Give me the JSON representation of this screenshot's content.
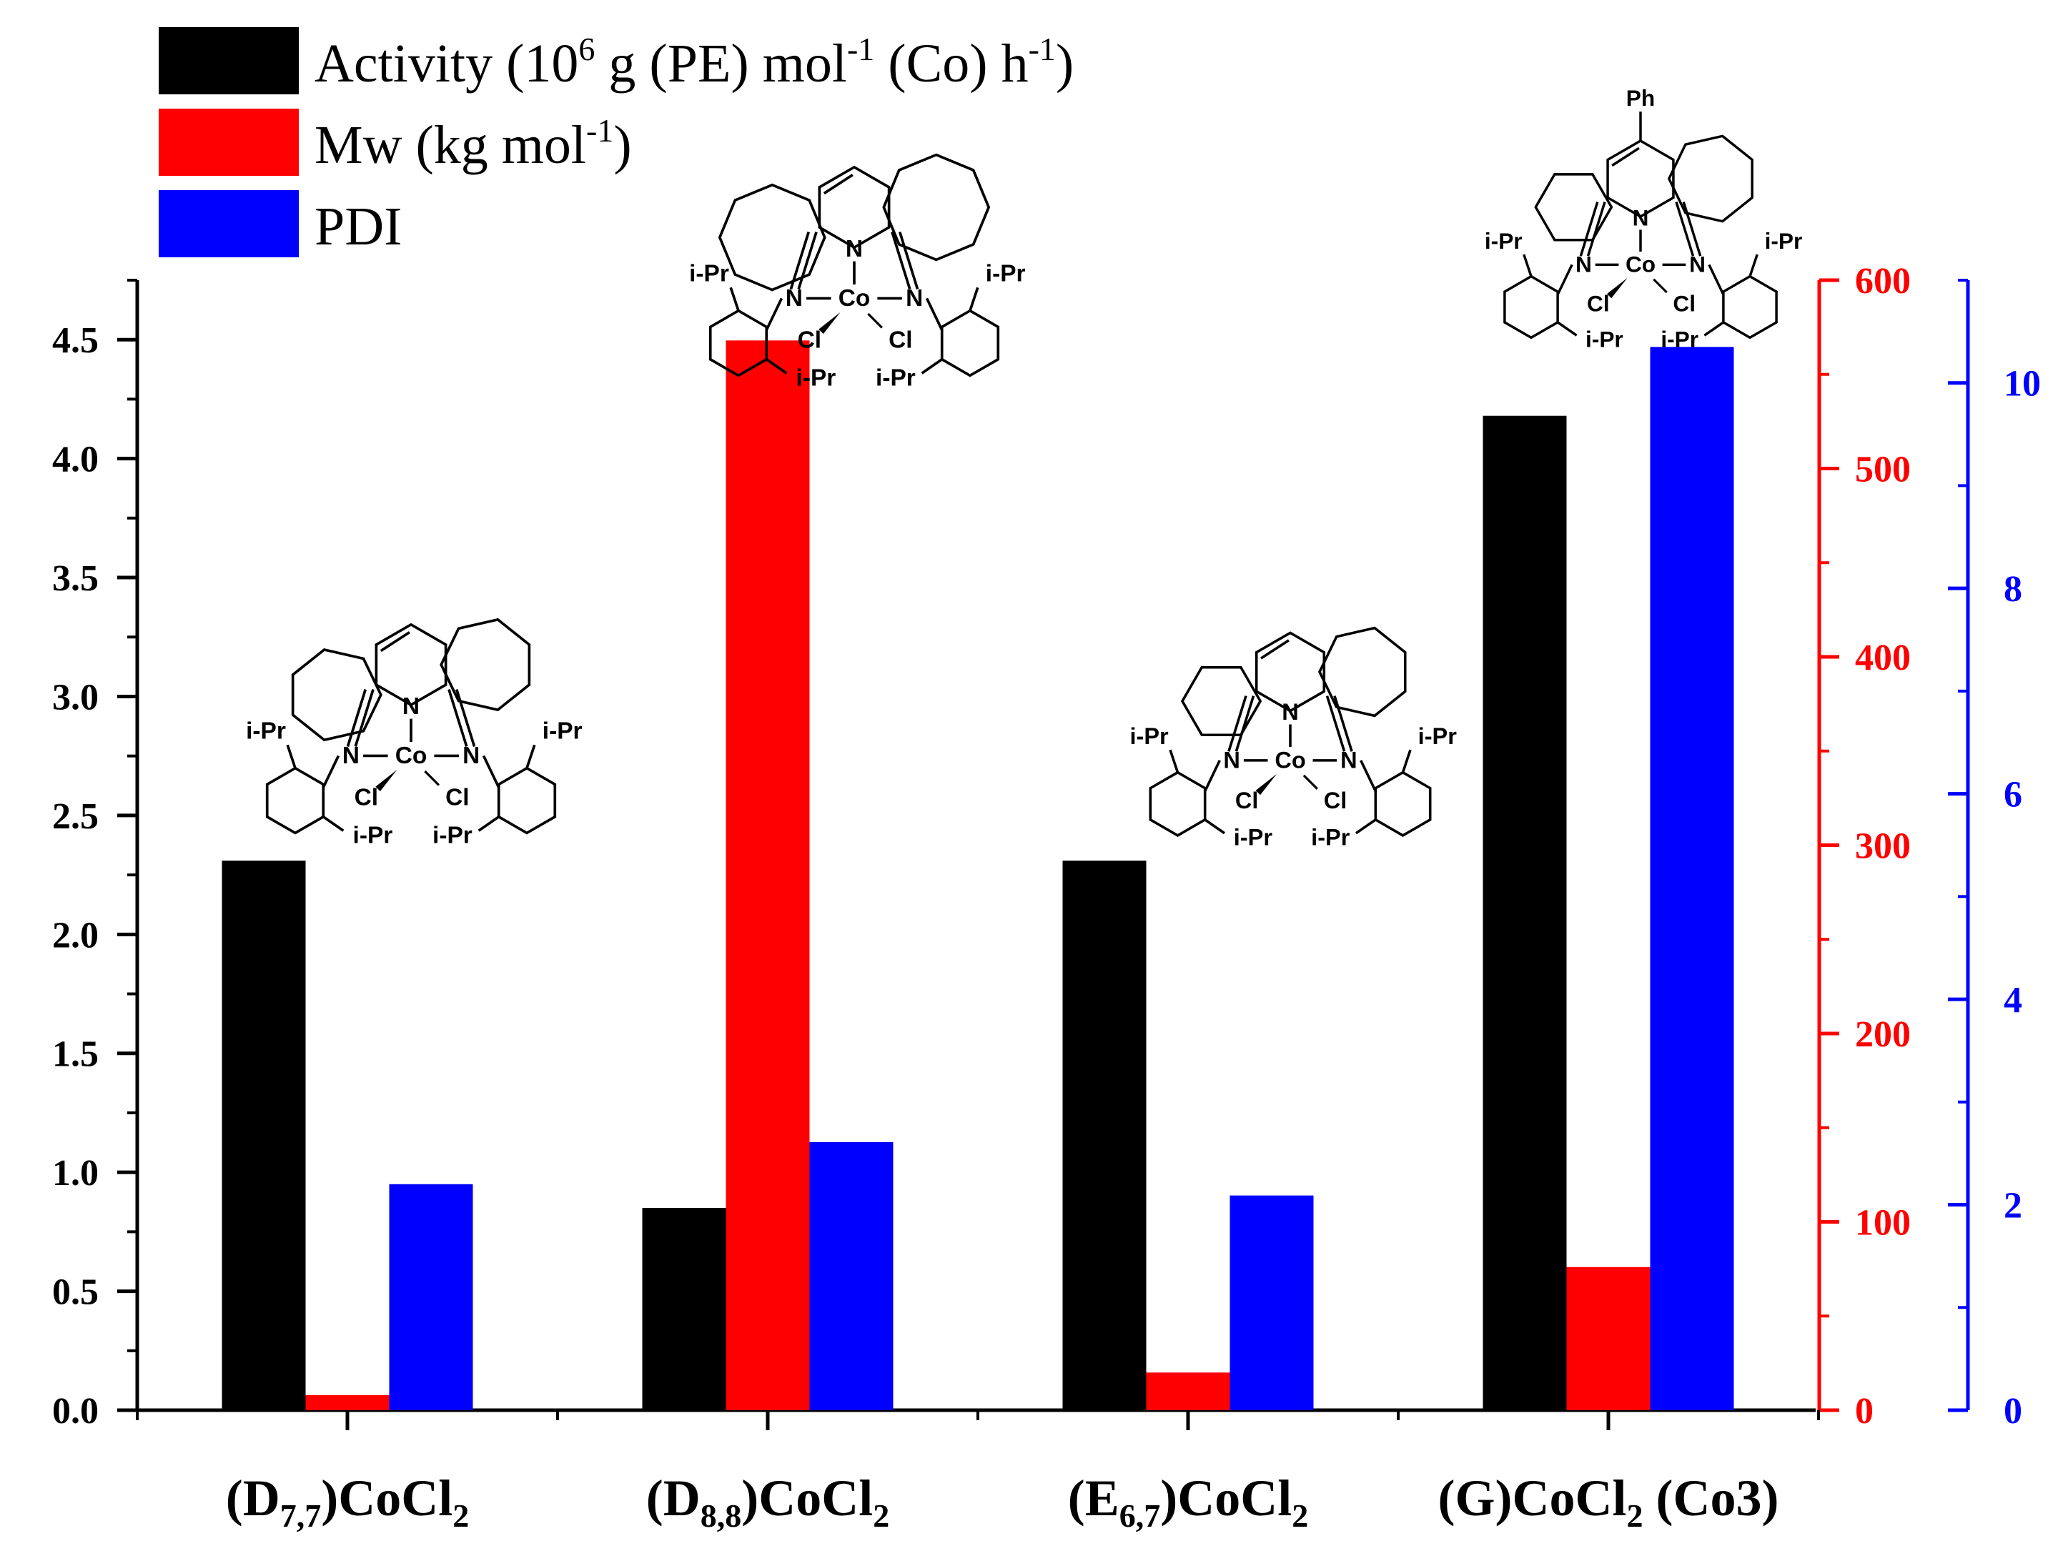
{
  "chart_data": {
    "type": "bar",
    "categories": [
      {
        "main": "(D",
        "sub": "7,7",
        "rest": ")CoCl",
        "sub2": "2",
        "tail": ""
      },
      {
        "main": "(D",
        "sub": "8,8",
        "rest": ")CoCl",
        "sub2": "2",
        "tail": ""
      },
      {
        "main": "(E",
        "sub": "6,7",
        "rest": ")CoCl",
        "sub2": "2",
        "tail": ""
      },
      {
        "main": "(G)CoCl",
        "sub": "2",
        "rest": " (Co3)",
        "sub2": "",
        "tail": ""
      }
    ],
    "series": [
      {
        "name": "Activity",
        "axis": "left",
        "color": "#000000",
        "values": [
          2.31,
          0.85,
          2.31,
          4.18
        ]
      },
      {
        "name": "Mw",
        "axis": "right1",
        "color": "#ff0000",
        "values": [
          8,
          568,
          20,
          76
        ]
      },
      {
        "name": "PDI",
        "axis": "right2",
        "color": "#0000ff",
        "values": [
          2.2,
          2.61,
          2.09,
          10.35
        ]
      }
    ],
    "legend": [
      {
        "color": "#000000",
        "parts": [
          {
            "t": "Activity (10",
            "s": ""
          },
          {
            "t": "6",
            "s": "sup"
          },
          {
            "t": " g (PE) mol",
            "s": ""
          },
          {
            "t": "-1",
            "s": "sup"
          },
          {
            "t": " (Co) h",
            "s": ""
          },
          {
            "t": "-1",
            "s": "sup"
          },
          {
            "t": ")",
            "s": ""
          }
        ]
      },
      {
        "color": "#ff0000",
        "parts": [
          {
            "t": "Mw (kg mol",
            "s": ""
          },
          {
            "t": "-1",
            "s": "sup"
          },
          {
            "t": ")",
            "s": ""
          }
        ]
      },
      {
        "color": "#0000ff",
        "parts": [
          {
            "t": "PDI",
            "s": ""
          }
        ]
      }
    ],
    "legend_position": "top-left",
    "y_left": {
      "min": 0,
      "max": 4.75,
      "ticks": [
        "0.0",
        "0.5",
        "1.0",
        "1.5",
        "2.0",
        "2.5",
        "3.0",
        "3.5",
        "4.0",
        "4.5"
      ],
      "tick_values": [
        0,
        0.5,
        1.0,
        1.5,
        2.0,
        2.5,
        3.0,
        3.5,
        4.0,
        4.5
      ],
      "minor_step": 0.25,
      "color": "#000000"
    },
    "y_right1": {
      "min": 0,
      "max": 600,
      "ticks": [
        "0",
        "100",
        "200",
        "300",
        "400",
        "500",
        "600"
      ],
      "tick_values": [
        0,
        100,
        200,
        300,
        400,
        500,
        600
      ],
      "minor_step": 50,
      "color": "#ff0000"
    },
    "y_right2": {
      "min": 0,
      "max": 11,
      "ticks": [
        "0",
        "2",
        "4",
        "6",
        "8",
        "10"
      ],
      "tick_values": [
        0,
        2,
        4,
        6,
        8,
        10
      ],
      "minor_step": 1,
      "color": "#0000ff"
    },
    "grid": false
  },
  "structures": {
    "atoms": {
      "n": "N",
      "co": "Co",
      "cl": "Cl",
      "ipr": "i-Pr",
      "ph": "Ph"
    }
  }
}
